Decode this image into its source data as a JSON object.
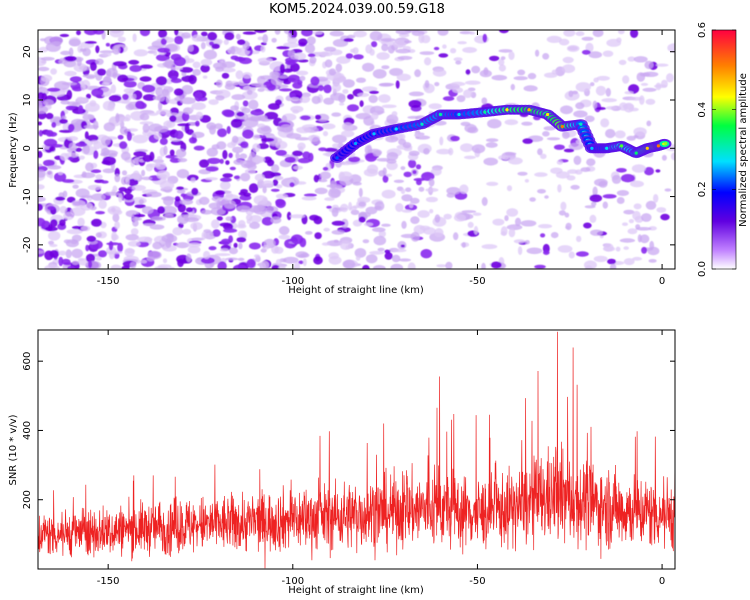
{
  "title": "KOM5.2024.039.00.59.G18",
  "colors": {
    "snr_line": "#ee2222",
    "frame": "#000000",
    "low_amplitude": "#c9a8f2",
    "mid_amplitude": "#7000e0"
  },
  "chart_data": [
    {
      "type": "heatmap",
      "title": "",
      "xlabel": "Height of straight line (km)",
      "ylabel": "Frequency (Hz)",
      "xlim": [
        -169,
        3.5
      ],
      "ylim": [
        -25,
        24.5
      ],
      "xticks": [
        -150,
        -100,
        -50,
        0
      ],
      "yticks": [
        -20,
        -10,
        0,
        10,
        20
      ],
      "grid": false,
      "colorbar": {
        "label": "Normalized spectral amplitude",
        "range": [
          0.0,
          0.6
        ],
        "ticks": [
          "0.0",
          "0.2",
          "0.4",
          "0.6"
        ]
      },
      "ridge": [
        {
          "x": -88,
          "y": -2,
          "amp": 0.22
        },
        {
          "x": -83,
          "y": 1,
          "amp": 0.25
        },
        {
          "x": -78,
          "y": 3,
          "amp": 0.26
        },
        {
          "x": -72,
          "y": 4,
          "amp": 0.27
        },
        {
          "x": -65,
          "y": 5,
          "amp": 0.3
        },
        {
          "x": -60,
          "y": 7,
          "amp": 0.32
        },
        {
          "x": -55,
          "y": 7,
          "amp": 0.28
        },
        {
          "x": -48,
          "y": 7.5,
          "amp": 0.32
        },
        {
          "x": -42,
          "y": 8,
          "amp": 0.44
        },
        {
          "x": -36,
          "y": 8,
          "amp": 0.48
        },
        {
          "x": -31,
          "y": 7,
          "amp": 0.44
        },
        {
          "x": -27,
          "y": 4.5,
          "amp": 0.52
        },
        {
          "x": -22,
          "y": 5,
          "amp": 0.3
        },
        {
          "x": -19,
          "y": 0,
          "amp": 0.26
        },
        {
          "x": -15,
          "y": 0,
          "amp": 0.28
        },
        {
          "x": -11,
          "y": 0.5,
          "amp": 0.38
        },
        {
          "x": -7,
          "y": -1,
          "amp": 0.34
        },
        {
          "x": -4,
          "y": 0,
          "amp": 0.46
        },
        {
          "x": -1,
          "y": 0.5,
          "amp": 0.52
        },
        {
          "x": 1,
          "y": 1,
          "amp": 0.4
        }
      ]
    },
    {
      "type": "line",
      "title": "",
      "xlabel": "Height of straight line (km)",
      "ylabel": "SNR (10 * v/v)",
      "xlim": [
        -169,
        3.5
      ],
      "ylim": [
        0,
        690
      ],
      "xticks": [
        -150,
        -100,
        -50,
        0
      ],
      "yticks": [
        200,
        400,
        600
      ],
      "grid": false,
      "envelope": {
        "x": [
          -169,
          -150,
          -130,
          -110,
          -90,
          -70,
          -60,
          -50,
          -40,
          -30,
          -25,
          -20,
          -10,
          0,
          3
        ],
        "y_mean": [
          100,
          110,
          125,
          135,
          150,
          170,
          175,
          160,
          175,
          210,
          200,
          190,
          170,
          160,
          160
        ],
        "y_peak": [
          250,
          270,
          300,
          330,
          420,
          500,
          580,
          440,
          480,
          690,
          680,
          520,
          430,
          430,
          430
        ]
      }
    }
  ]
}
